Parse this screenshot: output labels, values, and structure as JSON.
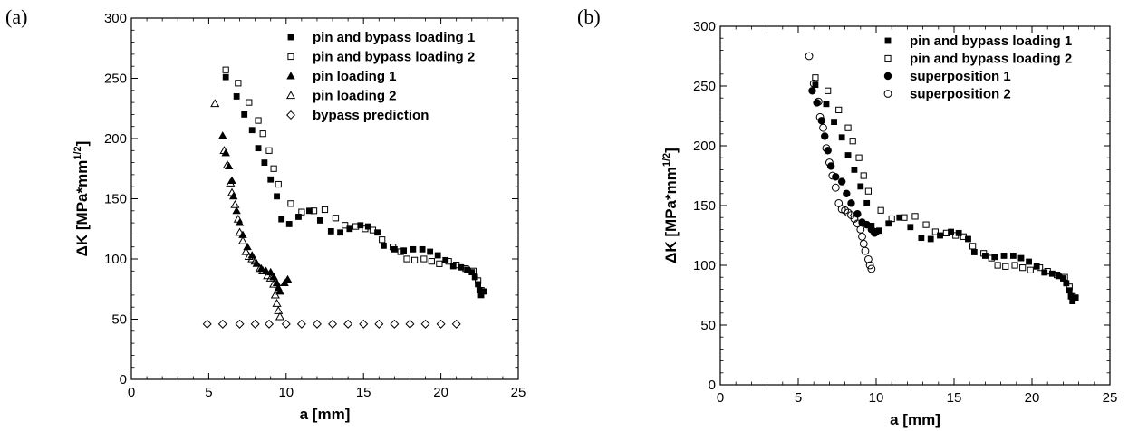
{
  "chart_data": [
    {
      "type": "scatter",
      "panel_label": "(a)",
      "xlabel": "a [mm]",
      "ylabel_main": "ΔK [MPa*mm",
      "ylabel_sup": "1/2",
      "ylabel_end": "]",
      "xlim": [
        0,
        25
      ],
      "ylim": [
        0,
        300
      ],
      "xticks": [
        "0",
        "5",
        "10",
        "15",
        "20",
        "25"
      ],
      "yticks": [
        "0",
        "50",
        "100",
        "150",
        "200",
        "250",
        "300"
      ],
      "grid": false,
      "legend_position": "top-right",
      "series": [
        {
          "name": "pin and bypass loading 1",
          "marker": "square-filled",
          "points": [
            [
              6.1,
              251
            ],
            [
              6.8,
              235
            ],
            [
              7.3,
              220
            ],
            [
              7.8,
              207
            ],
            [
              8.2,
              192
            ],
            [
              8.6,
              180
            ],
            [
              9.0,
              166
            ],
            [
              9.4,
              152
            ],
            [
              9.7,
              133
            ],
            [
              10.2,
              129
            ],
            [
              10.8,
              135
            ],
            [
              11.5,
              140
            ],
            [
              12.2,
              132
            ],
            [
              12.9,
              123
            ],
            [
              13.5,
              122
            ],
            [
              14.1,
              125
            ],
            [
              14.8,
              128
            ],
            [
              15.3,
              127
            ],
            [
              15.9,
              122
            ],
            [
              16.3,
              111
            ],
            [
              17.0,
              108
            ],
            [
              17.6,
              107
            ],
            [
              18.2,
              108
            ],
            [
              18.8,
              108
            ],
            [
              19.3,
              106
            ],
            [
              19.8,
              103
            ],
            [
              20.3,
              99
            ],
            [
              20.8,
              94
            ],
            [
              21.3,
              93
            ],
            [
              21.7,
              91
            ],
            [
              22.0,
              89
            ],
            [
              22.2,
              85
            ],
            [
              22.4,
              79
            ],
            [
              22.5,
              74
            ],
            [
              22.6,
              70
            ],
            [
              22.8,
              73
            ]
          ]
        },
        {
          "name": "pin and bypass loading 2",
          "marker": "square-open",
          "points": [
            [
              6.1,
              257
            ],
            [
              6.9,
              246
            ],
            [
              7.6,
              230
            ],
            [
              8.2,
              215
            ],
            [
              8.5,
              204
            ],
            [
              8.9,
              190
            ],
            [
              9.2,
              175
            ],
            [
              9.5,
              162
            ],
            [
              10.3,
              146
            ],
            [
              11.0,
              139
            ],
            [
              11.8,
              140
            ],
            [
              12.5,
              141
            ],
            [
              13.2,
              134
            ],
            [
              13.8,
              128
            ],
            [
              14.5,
              127
            ],
            [
              15.1,
              125
            ],
            [
              15.6,
              124
            ],
            [
              16.2,
              116
            ],
            [
              16.9,
              110
            ],
            [
              17.4,
              106
            ],
            [
              17.8,
              100
            ],
            [
              18.3,
              99
            ],
            [
              18.9,
              100
            ],
            [
              19.4,
              98
            ],
            [
              19.9,
              96
            ],
            [
              20.5,
              98
            ],
            [
              21.0,
              95
            ],
            [
              21.6,
              92
            ],
            [
              22.1,
              90
            ],
            [
              22.4,
              82
            ],
            [
              22.6,
              74
            ]
          ]
        },
        {
          "name": "pin loading 1",
          "marker": "triangle-filled",
          "points": [
            [
              5.9,
              202
            ],
            [
              6.1,
              188
            ],
            [
              6.3,
              177
            ],
            [
              6.5,
              165
            ],
            [
              6.6,
              152
            ],
            [
              6.8,
              140
            ],
            [
              7.0,
              130
            ],
            [
              7.2,
              120
            ],
            [
              7.5,
              110
            ],
            [
              7.8,
              103
            ],
            [
              8.1,
              96
            ],
            [
              8.4,
              92
            ],
            [
              8.7,
              90
            ],
            [
              9.0,
              89
            ],
            [
              9.2,
              85
            ],
            [
              9.4,
              80
            ],
            [
              9.5,
              76
            ],
            [
              9.6,
              73
            ],
            [
              9.9,
              80
            ],
            [
              10.1,
              83
            ]
          ]
        },
        {
          "name": "pin loading 2",
          "marker": "triangle-open",
          "points": [
            [
              5.4,
              229
            ],
            [
              5.9,
              202
            ],
            [
              6.0,
              190
            ],
            [
              6.2,
              178
            ],
            [
              6.4,
              163
            ],
            [
              6.5,
              155
            ],
            [
              6.7,
              145
            ],
            [
              6.9,
              133
            ],
            [
              7.0,
              122
            ],
            [
              7.2,
              115
            ],
            [
              7.4,
              106
            ],
            [
              7.6,
              102
            ],
            [
              7.8,
              100
            ],
            [
              8.0,
              98
            ],
            [
              8.3,
              92
            ],
            [
              8.5,
              90
            ],
            [
              8.8,
              86
            ],
            [
              9.0,
              84
            ],
            [
              9.2,
              79
            ],
            [
              9.3,
              70
            ],
            [
              9.4,
              63
            ],
            [
              9.5,
              57
            ],
            [
              9.6,
              52
            ]
          ]
        },
        {
          "name": "bypass prediction",
          "marker": "diamond-open",
          "points": [
            [
              4.9,
              46
            ],
            [
              5.9,
              46
            ],
            [
              7.0,
              46
            ],
            [
              8.0,
              46
            ],
            [
              8.9,
              46
            ],
            [
              10.0,
              46
            ],
            [
              11.0,
              46
            ],
            [
              12.0,
              46
            ],
            [
              13.0,
              46
            ],
            [
              14.0,
              46
            ],
            [
              15.0,
              46
            ],
            [
              16.0,
              46
            ],
            [
              17.0,
              46
            ],
            [
              18.0,
              46
            ],
            [
              19.0,
              46
            ],
            [
              20.0,
              46
            ],
            [
              21.0,
              46
            ]
          ]
        }
      ]
    },
    {
      "type": "scatter",
      "panel_label": "(b)",
      "xlabel": "a [mm]",
      "ylabel_main": "ΔK [MPa*mm",
      "ylabel_sup": "1/2",
      "ylabel_end": "]",
      "xlim": [
        0,
        25
      ],
      "ylim": [
        0,
        300
      ],
      "xticks": [
        "0",
        "5",
        "10",
        "15",
        "20",
        "25"
      ],
      "yticks": [
        "0",
        "50",
        "100",
        "150",
        "200",
        "250",
        "300"
      ],
      "grid": false,
      "legend_position": "top-right",
      "series": [
        {
          "name": "pin and bypass loading 1",
          "marker": "square-filled",
          "points": [
            [
              6.1,
              251
            ],
            [
              6.8,
              235
            ],
            [
              7.3,
              220
            ],
            [
              7.8,
              207
            ],
            [
              8.2,
              192
            ],
            [
              8.6,
              180
            ],
            [
              9.0,
              166
            ],
            [
              9.4,
              152
            ],
            [
              9.7,
              133
            ],
            [
              10.2,
              129
            ],
            [
              10.8,
              135
            ],
            [
              11.5,
              140
            ],
            [
              12.2,
              132
            ],
            [
              12.9,
              123
            ],
            [
              13.5,
              122
            ],
            [
              14.1,
              125
            ],
            [
              14.8,
              128
            ],
            [
              15.3,
              127
            ],
            [
              15.9,
              122
            ],
            [
              16.3,
              111
            ],
            [
              17.0,
              108
            ],
            [
              17.6,
              107
            ],
            [
              18.2,
              108
            ],
            [
              18.8,
              108
            ],
            [
              19.3,
              106
            ],
            [
              19.8,
              103
            ],
            [
              20.3,
              99
            ],
            [
              20.8,
              94
            ],
            [
              21.3,
              93
            ],
            [
              21.7,
              91
            ],
            [
              22.0,
              89
            ],
            [
              22.2,
              85
            ],
            [
              22.4,
              79
            ],
            [
              22.5,
              74
            ],
            [
              22.6,
              70
            ],
            [
              22.8,
              73
            ]
          ]
        },
        {
          "name": "pin and bypass loading 2",
          "marker": "square-open",
          "points": [
            [
              6.1,
              257
            ],
            [
              6.9,
              246
            ],
            [
              7.6,
              230
            ],
            [
              8.2,
              215
            ],
            [
              8.5,
              204
            ],
            [
              8.9,
              190
            ],
            [
              9.2,
              175
            ],
            [
              9.5,
              162
            ],
            [
              10.3,
              146
            ],
            [
              11.0,
              139
            ],
            [
              11.8,
              140
            ],
            [
              12.5,
              141
            ],
            [
              13.2,
              134
            ],
            [
              13.8,
              128
            ],
            [
              14.5,
              127
            ],
            [
              15.1,
              125
            ],
            [
              15.6,
              124
            ],
            [
              16.2,
              116
            ],
            [
              16.9,
              110
            ],
            [
              17.4,
              106
            ],
            [
              17.8,
              100
            ],
            [
              18.3,
              99
            ],
            [
              18.9,
              100
            ],
            [
              19.4,
              98
            ],
            [
              19.9,
              96
            ],
            [
              20.5,
              98
            ],
            [
              21.0,
              95
            ],
            [
              21.6,
              92
            ],
            [
              22.1,
              90
            ],
            [
              22.4,
              82
            ],
            [
              22.6,
              74
            ]
          ]
        },
        {
          "name": "superposition 1",
          "marker": "circle-filled",
          "points": [
            [
              5.9,
              246
            ],
            [
              6.2,
              236
            ],
            [
              6.5,
              221
            ],
            [
              6.7,
              208
            ],
            [
              6.9,
              196
            ],
            [
              7.1,
              183
            ],
            [
              7.4,
              174
            ],
            [
              7.8,
              170
            ],
            [
              8.1,
              160
            ],
            [
              8.4,
              152
            ],
            [
              8.8,
              143
            ],
            [
              9.1,
              136
            ],
            [
              9.4,
              134
            ],
            [
              9.7,
              130
            ],
            [
              9.9,
              127
            ],
            [
              10.0,
              128
            ]
          ]
        },
        {
          "name": "superposition 2",
          "marker": "circle-open",
          "points": [
            [
              5.7,
              275
            ],
            [
              6.0,
              252
            ],
            [
              6.3,
              237
            ],
            [
              6.4,
              224
            ],
            [
              6.6,
              215
            ],
            [
              6.8,
              198
            ],
            [
              7.0,
              186
            ],
            [
              7.2,
              175
            ],
            [
              7.4,
              165
            ],
            [
              7.6,
              152
            ],
            [
              7.8,
              147
            ],
            [
              8.0,
              146
            ],
            [
              8.2,
              144
            ],
            [
              8.4,
              142
            ],
            [
              8.6,
              139
            ],
            [
              8.8,
              135
            ],
            [
              9.0,
              130
            ],
            [
              9.1,
              124
            ],
            [
              9.2,
              118
            ],
            [
              9.3,
              112
            ],
            [
              9.5,
              105
            ],
            [
              9.6,
              100
            ],
            [
              9.7,
              97
            ]
          ]
        }
      ]
    }
  ]
}
